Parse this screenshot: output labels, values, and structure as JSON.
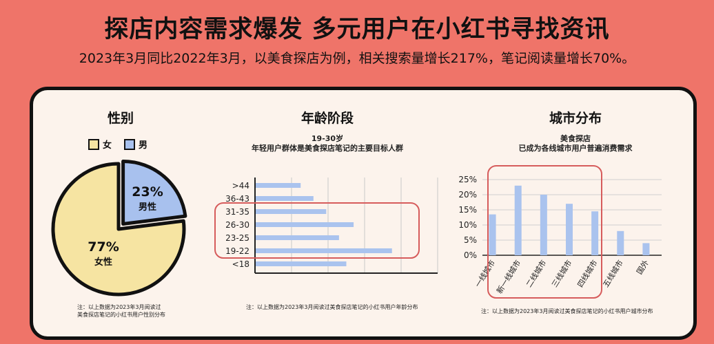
{
  "header": {
    "title": "探店内容需求爆发 多元用户在小红书寻找资讯",
    "subtitle": "2023年3月同比2022年3月，以美食探店为例，相关搜索量增长217%，笔记阅读量增长70%。"
  },
  "colors": {
    "background": "#ef7469",
    "card": "#fcf3ec",
    "female": "#f6e4a2",
    "male": "#a8c1ee",
    "bar": "#aac3ee",
    "highlight": "#d65b5b"
  },
  "gender": {
    "title": "性别",
    "legend": [
      {
        "label": "女",
        "color": "#f6e4a2"
      },
      {
        "label": "男",
        "color": "#a8c1ee"
      }
    ],
    "note_line1": "注：以上数据为2023年3月阅读过",
    "note_line2": "美食探店笔记的小红书用户性别分布"
  },
  "age": {
    "title": "年龄阶段",
    "sub_line1": "19-30岁",
    "sub_line2": "年轻用户群体是美食探店笔记的主要目标人群",
    "note": "注：以上数据为2023年3月阅读过美食探店笔记的小红书用户年龄分布"
  },
  "city": {
    "title": "城市分布",
    "sub_line1": "美食探店",
    "sub_line2": "已成为各线城市用户普遍消费需求",
    "note": "注：以上数据为2023年3月阅读过美食探店笔记的小红书用户城市分布"
  },
  "chart_data": [
    {
      "type": "pie",
      "title": "性别",
      "slices": [
        {
          "name": "女性",
          "value": 77,
          "label": "77%",
          "sublabel": "女性"
        },
        {
          "name": "男性",
          "value": 23,
          "label": "23%",
          "sublabel": "男性"
        }
      ]
    },
    {
      "type": "bar",
      "orientation": "horizontal",
      "title": "年龄阶段",
      "categories": [
        ">44",
        "36-43",
        "31-35",
        "26-30",
        "23-25",
        "19-22",
        "<18"
      ],
      "values": [
        12.5,
        16,
        19.5,
        27,
        23,
        37.5,
        25
      ],
      "highlight": [
        "31-35",
        "26-30",
        "23-25",
        "19-22"
      ],
      "xlim": [
        0,
        50
      ],
      "grid": true
    },
    {
      "type": "bar",
      "title": "城市分布",
      "categories": [
        "一线城市",
        "新一线城市",
        "二线城市",
        "三线城市",
        "四线城市",
        "五线城市",
        "国外"
      ],
      "values": [
        13.5,
        23,
        20,
        17,
        14.5,
        8,
        4
      ],
      "ylim": [
        0,
        25
      ],
      "yticks": [
        "0%",
        "5%",
        "10%",
        "15%",
        "20%",
        "25%"
      ],
      "highlight": [
        "一线城市",
        "新一线城市",
        "二线城市",
        "三线城市",
        "四线城市"
      ],
      "grid": true
    }
  ]
}
